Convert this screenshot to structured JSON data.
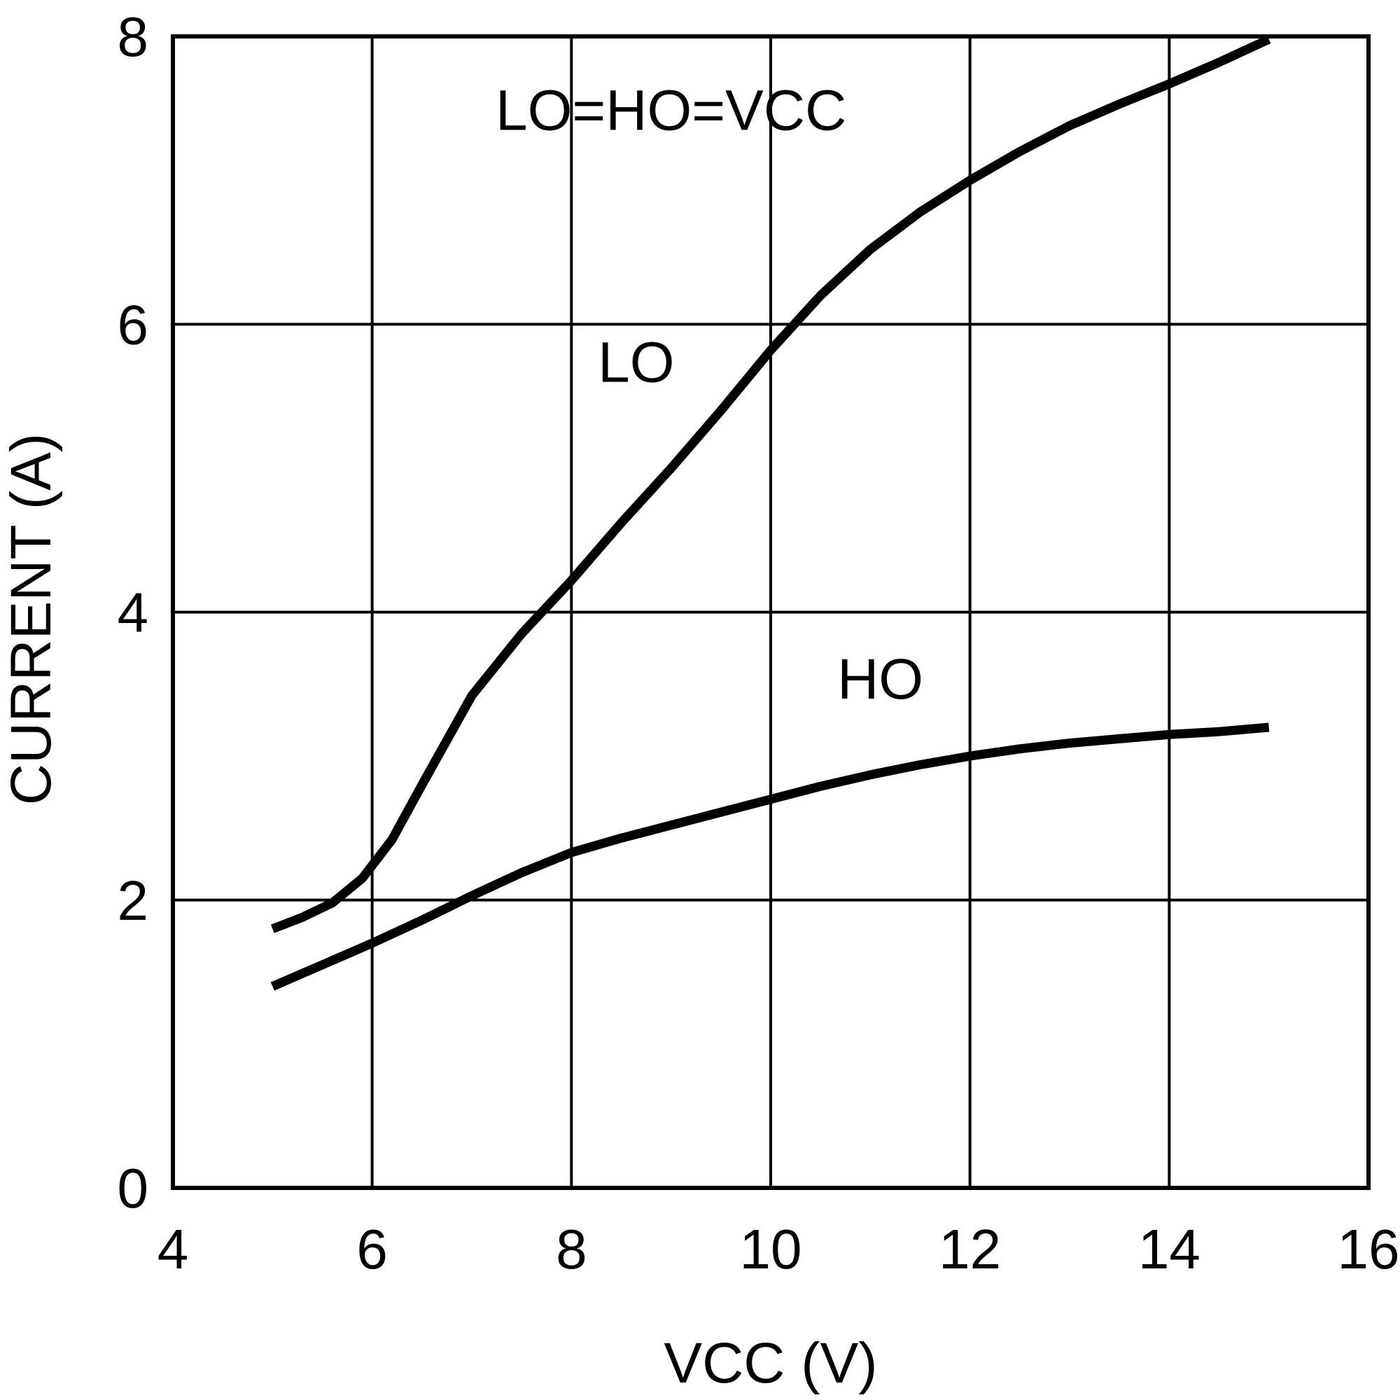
{
  "chart_data": {
    "type": "line",
    "title": "",
    "xlabel": "VCC (V)",
    "ylabel": "CURRENT (A)",
    "xlim": [
      4,
      16
    ],
    "ylim": [
      0,
      8
    ],
    "x_ticks": [
      4,
      6,
      8,
      10,
      12,
      14,
      16
    ],
    "y_ticks": [
      0,
      2,
      4,
      6,
      8
    ],
    "x_tick_labels": [
      "4",
      "6",
      "8",
      "10",
      "12",
      "14",
      "16"
    ],
    "y_tick_labels": [
      "0",
      "2",
      "4",
      "6",
      "8"
    ],
    "grid": true,
    "legend": "none",
    "series": [
      {
        "name": "LO",
        "x": [
          5.0,
          5.3,
          5.6,
          5.9,
          6.2,
          6.5,
          7.0,
          7.5,
          8.0,
          8.5,
          9.0,
          9.5,
          10.0,
          10.5,
          11.0,
          11.5,
          12.0,
          12.5,
          13.0,
          13.5,
          14.0,
          14.5,
          15.0
        ],
        "y": [
          1.8,
          1.88,
          1.98,
          2.15,
          2.42,
          2.8,
          3.42,
          3.85,
          4.22,
          4.62,
          5.0,
          5.4,
          5.82,
          6.2,
          6.52,
          6.78,
          7.0,
          7.2,
          7.38,
          7.53,
          7.67,
          7.82,
          7.98
        ]
      },
      {
        "name": "HO",
        "x": [
          5.0,
          5.5,
          6.0,
          6.5,
          7.0,
          7.5,
          8.0,
          8.5,
          9.0,
          9.5,
          10.0,
          10.5,
          11.0,
          11.5,
          12.0,
          12.5,
          13.0,
          13.5,
          14.0,
          14.5,
          15.0
        ],
        "y": [
          1.4,
          1.55,
          1.7,
          1.86,
          2.03,
          2.19,
          2.33,
          2.43,
          2.52,
          2.61,
          2.7,
          2.79,
          2.87,
          2.94,
          3.0,
          3.05,
          3.09,
          3.12,
          3.15,
          3.17,
          3.2
        ]
      }
    ],
    "annotations": {
      "condition": "LO=HO=VCC",
      "lo_label": "LO",
      "ho_label": "HO"
    }
  }
}
